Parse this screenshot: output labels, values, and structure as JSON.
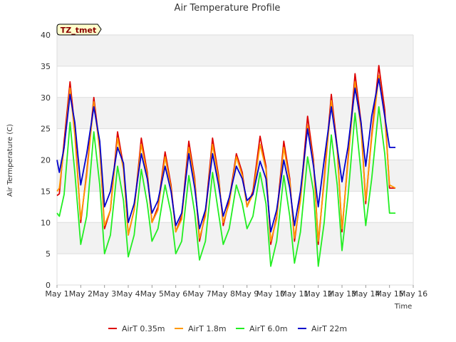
{
  "chart_data": {
    "type": "line",
    "title": "Air Temperature Profile",
    "xlabel": "Time",
    "ylabel": "Air Termperature (C)",
    "annotation": "TZ_tmet",
    "xlim": [
      1,
      16
    ],
    "ylim": [
      0,
      40
    ],
    "x_ticks": [
      {
        "value": 1,
        "label": "May 1"
      },
      {
        "value": 2,
        "label": "May 2"
      },
      {
        "value": 3,
        "label": "May 3"
      },
      {
        "value": 4,
        "label": "May 4"
      },
      {
        "value": 5,
        "label": "May 5"
      },
      {
        "value": 6,
        "label": "May 6"
      },
      {
        "value": 7,
        "label": "May 7"
      },
      {
        "value": 8,
        "label": "May 8"
      },
      {
        "value": 9,
        "label": "May 9"
      },
      {
        "value": 10,
        "label": "May 10"
      },
      {
        "value": 11,
        "label": "May 11"
      },
      {
        "value": 12,
        "label": "May 12"
      },
      {
        "value": 13,
        "label": "May 13"
      },
      {
        "value": 14,
        "label": "May 14"
      },
      {
        "value": 15,
        "label": "May 15"
      },
      {
        "value": 16,
        "label": "May 16"
      }
    ],
    "y_ticks": [
      0,
      5,
      10,
      15,
      20,
      25,
      30,
      35,
      40
    ],
    "grid": true,
    "legend_position": "bottom",
    "series": [
      {
        "name": "AirT 0.35m",
        "color": "#dd0000",
        "x": [
          1.0,
          1.1,
          1.3,
          1.55,
          1.75,
          2.0,
          2.25,
          2.55,
          2.8,
          3.0,
          3.25,
          3.55,
          3.8,
          4.0,
          4.25,
          4.55,
          4.8,
          5.0,
          5.25,
          5.55,
          5.8,
          6.0,
          6.25,
          6.55,
          6.8,
          7.0,
          7.25,
          7.55,
          7.8,
          8.0,
          8.25,
          8.55,
          8.8,
          9.0,
          9.25,
          9.55,
          9.8,
          10.0,
          10.25,
          10.55,
          10.8,
          11.0,
          11.25,
          11.55,
          11.8,
          12.0,
          12.25,
          12.55,
          12.8,
          13.0,
          13.25,
          13.55,
          13.8,
          14.0,
          14.25,
          14.55,
          14.8,
          15.0,
          15.25
        ],
        "y": [
          14.3,
          14.6,
          23.0,
          32.5,
          25.0,
          10.0,
          18.0,
          30.0,
          22.0,
          9.0,
          12.0,
          24.5,
          19.0,
          8.0,
          12.0,
          23.5,
          18.0,
          10.0,
          12.5,
          21.3,
          16.0,
          8.5,
          11.0,
          23.0,
          17.0,
          7.0,
          11.5,
          23.5,
          17.5,
          9.5,
          13.5,
          21.0,
          18.0,
          12.5,
          15.0,
          23.8,
          19.0,
          6.5,
          11.0,
          23.0,
          17.0,
          7.0,
          14.0,
          27.0,
          20.0,
          6.5,
          17.0,
          30.5,
          22.0,
          8.5,
          20.0,
          33.8,
          26.0,
          13.0,
          24.0,
          35.1,
          28.0,
          15.5,
          15.5
        ]
      },
      {
        "name": "AirT 1.8m",
        "color": "#ff9900",
        "x": [
          1.0,
          1.1,
          1.3,
          1.55,
          1.75,
          2.0,
          2.25,
          2.55,
          2.8,
          3.0,
          3.25,
          3.55,
          3.8,
          4.0,
          4.25,
          4.55,
          4.8,
          5.0,
          5.25,
          5.55,
          5.8,
          6.0,
          6.25,
          6.55,
          6.8,
          7.0,
          7.25,
          7.55,
          7.8,
          8.0,
          8.25,
          8.55,
          8.8,
          9.0,
          9.25,
          9.55,
          9.8,
          10.0,
          10.25,
          10.55,
          10.8,
          11.0,
          11.25,
          11.55,
          11.8,
          12.0,
          12.25,
          12.55,
          12.8,
          13.0,
          13.25,
          13.55,
          13.8,
          14.0,
          14.25,
          14.55,
          14.8,
          15.0,
          15.25
        ],
        "y": [
          15.0,
          15.5,
          22.0,
          31.5,
          24.0,
          10.5,
          17.5,
          29.3,
          21.5,
          9.5,
          12.0,
          23.5,
          18.5,
          8.0,
          12.0,
          22.5,
          17.5,
          10.0,
          12.0,
          20.5,
          15.5,
          8.5,
          10.5,
          22.0,
          16.5,
          7.5,
          11.0,
          22.5,
          17.0,
          10.0,
          13.0,
          20.5,
          17.5,
          12.5,
          14.5,
          22.5,
          18.5,
          7.0,
          10.5,
          22.0,
          16.5,
          7.5,
          13.5,
          25.5,
          19.5,
          7.0,
          16.5,
          29.5,
          21.5,
          9.0,
          19.5,
          32.5,
          25.0,
          13.5,
          23.5,
          33.5,
          27.0,
          16.0,
          15.5
        ]
      },
      {
        "name": "AirT 6.0m",
        "color": "#22ee22",
        "x": [
          1.0,
          1.1,
          1.3,
          1.55,
          1.75,
          2.0,
          2.25,
          2.55,
          2.8,
          3.0,
          3.25,
          3.55,
          3.8,
          4.0,
          4.25,
          4.55,
          4.8,
          5.0,
          5.25,
          5.55,
          5.8,
          6.0,
          6.25,
          6.55,
          6.8,
          7.0,
          7.25,
          7.55,
          7.8,
          8.0,
          8.25,
          8.55,
          8.8,
          9.0,
          9.25,
          9.55,
          9.8,
          10.0,
          10.25,
          10.55,
          10.8,
          11.0,
          11.25,
          11.55,
          11.8,
          12.0,
          12.25,
          12.55,
          12.8,
          13.0,
          13.25,
          13.55,
          13.8,
          14.0,
          14.25,
          14.55,
          14.8,
          15.0,
          15.25
        ],
        "y": [
          11.5,
          11.0,
          14.5,
          26.0,
          18.0,
          6.5,
          11.0,
          24.5,
          16.0,
          5.0,
          8.0,
          19.0,
          13.5,
          4.5,
          8.0,
          18.5,
          13.0,
          7.0,
          9.0,
          16.0,
          11.5,
          5.0,
          7.0,
          17.5,
          11.5,
          4.0,
          7.0,
          18.0,
          11.5,
          6.5,
          9.0,
          16.0,
          13.0,
          9.0,
          11.0,
          18.0,
          13.0,
          3.0,
          7.0,
          17.5,
          11.0,
          3.5,
          8.5,
          20.5,
          15.0,
          3.0,
          10.0,
          24.0,
          16.0,
          5.5,
          14.0,
          27.5,
          18.0,
          9.5,
          17.0,
          28.5,
          21.0,
          11.5,
          11.5
        ]
      },
      {
        "name": "AirT 22m",
        "color": "#0000cc",
        "x": [
          1.0,
          1.1,
          1.3,
          1.55,
          1.75,
          2.0,
          2.25,
          2.55,
          2.8,
          3.0,
          3.25,
          3.55,
          3.8,
          4.0,
          4.25,
          4.55,
          4.8,
          5.0,
          5.25,
          5.55,
          5.8,
          6.0,
          6.25,
          6.55,
          6.8,
          7.0,
          7.25,
          7.55,
          7.8,
          8.0,
          8.25,
          8.55,
          8.8,
          9.0,
          9.25,
          9.55,
          9.8,
          10.0,
          10.25,
          10.55,
          10.8,
          11.0,
          11.25,
          11.55,
          11.8,
          12.0,
          12.25,
          12.55,
          12.8,
          13.0,
          13.25,
          13.55,
          13.8,
          14.0,
          14.25,
          14.55,
          14.8,
          15.0,
          15.25
        ],
        "y": [
          20.0,
          18.0,
          22.0,
          30.5,
          26.0,
          16.0,
          21.0,
          28.5,
          23.0,
          12.5,
          15.0,
          22.0,
          19.5,
          10.0,
          13.0,
          21.0,
          17.0,
          11.5,
          13.5,
          19.0,
          15.0,
          9.5,
          11.5,
          21.0,
          15.5,
          9.0,
          12.0,
          21.0,
          16.0,
          11.0,
          14.0,
          19.0,
          17.0,
          13.5,
          14.5,
          19.8,
          17.0,
          8.5,
          12.0,
          20.0,
          15.5,
          9.5,
          15.0,
          25.0,
          19.0,
          12.5,
          20.0,
          28.5,
          22.0,
          16.5,
          22.0,
          31.5,
          26.0,
          19.0,
          27.0,
          33.0,
          27.0,
          22.0,
          22.0
        ]
      }
    ]
  }
}
